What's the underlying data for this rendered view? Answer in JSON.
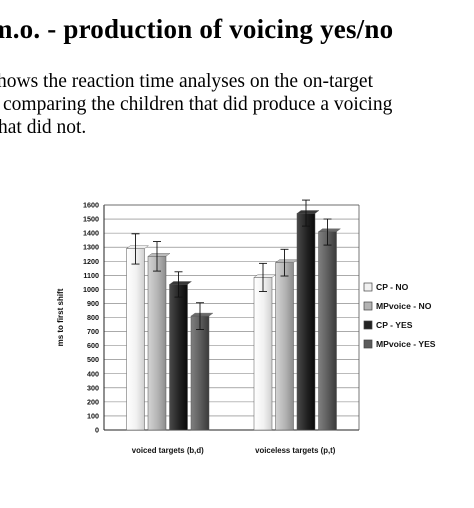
{
  "page": {
    "title": "m.o. - production of voicing yes/no",
    "lines": [
      "hows the reaction time analyses on the on-target",
      "comparing the children that did produce a voicing",
      "hat did not."
    ]
  },
  "chart_data": {
    "type": "bar",
    "ylabel": "ms to first shift",
    "xlabel": "",
    "ylim": [
      0,
      1600
    ],
    "yticks": [
      0,
      100,
      200,
      300,
      400,
      500,
      600,
      700,
      800,
      900,
      1000,
      1100,
      1200,
      1300,
      1400,
      1500,
      1600
    ],
    "grid": true,
    "legend_position": "right",
    "categories": [
      "voiced targets (b,d)",
      "voiceless targets (p,t)"
    ],
    "series": [
      {
        "name": "CP - NO",
        "color": "#f1f1f1",
        "values": [
          1290,
          1085
        ],
        "err_low": [
          1180,
          985
        ],
        "err_high": [
          1395,
          1185
        ]
      },
      {
        "name": "MPvoice - NO",
        "color": "#b3b3b3",
        "values": [
          1235,
          1190
        ],
        "err_low": [
          1130,
          1095
        ],
        "err_high": [
          1340,
          1285
        ]
      },
      {
        "name": "CP - YES",
        "color": "#222222",
        "values": [
          1035,
          1540
        ],
        "err_low": [
          945,
          1450
        ],
        "err_high": [
          1125,
          1635
        ]
      },
      {
        "name": "MPvoice - YES",
        "color": "#5b5b5b",
        "values": [
          810,
          1410
        ],
        "err_low": [
          715,
          1315
        ],
        "err_high": [
          905,
          1500
        ]
      }
    ]
  }
}
